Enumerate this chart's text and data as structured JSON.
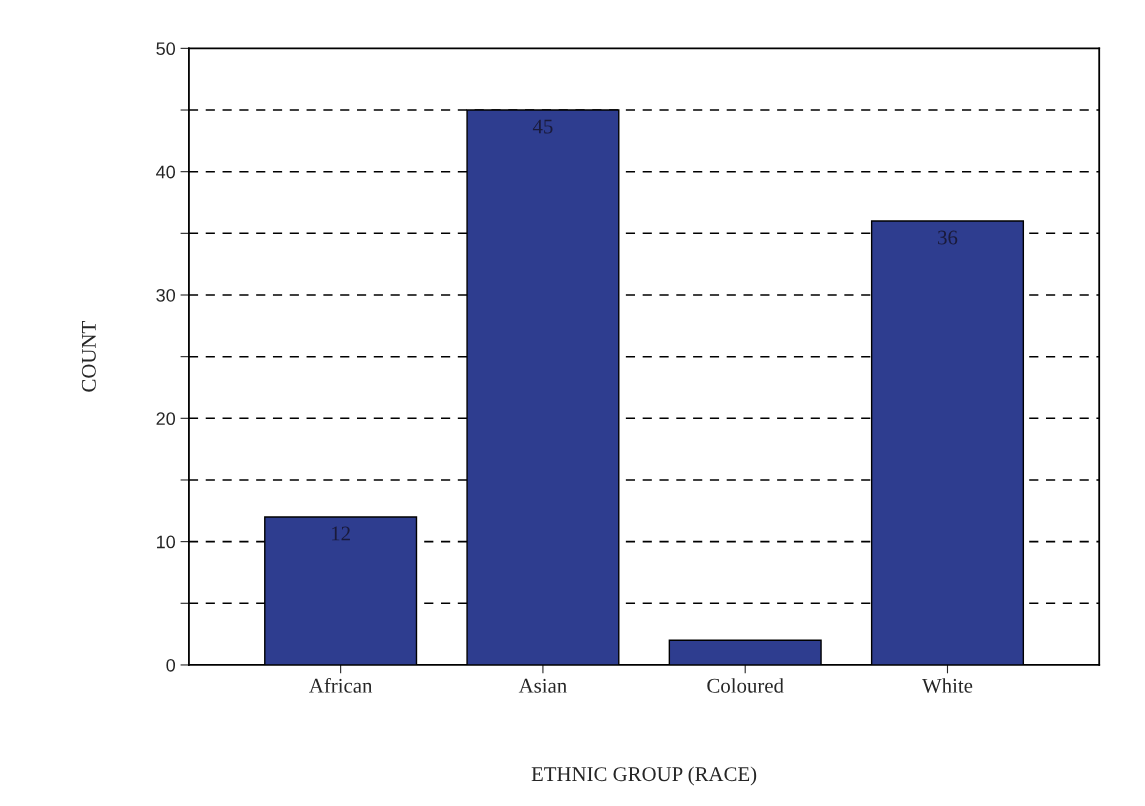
{
  "chart_data": {
    "type": "bar",
    "xlabel": "ETHNIC GROUP (RACE)",
    "ylabel": "COUNT",
    "categories": [
      "African",
      "Asian",
      "Coloured",
      "White"
    ],
    "values": [
      12,
      45,
      2,
      36
    ],
    "value_labels": [
      "12",
      "45",
      null,
      "36"
    ],
    "color": "#2e3d8f",
    "ylim": [
      0,
      50
    ],
    "yticks": [
      0,
      {
        "value": 5,
        "label": null
      },
      10,
      {
        "value": 15,
        "label": null
      },
      20,
      {
        "value": 25,
        "label": null
      },
      30,
      {
        "value": 35,
        "label": null
      },
      40,
      {
        "value": 45,
        "label": null
      },
      50
    ],
    "grid": "y",
    "line_style": "dashed"
  }
}
